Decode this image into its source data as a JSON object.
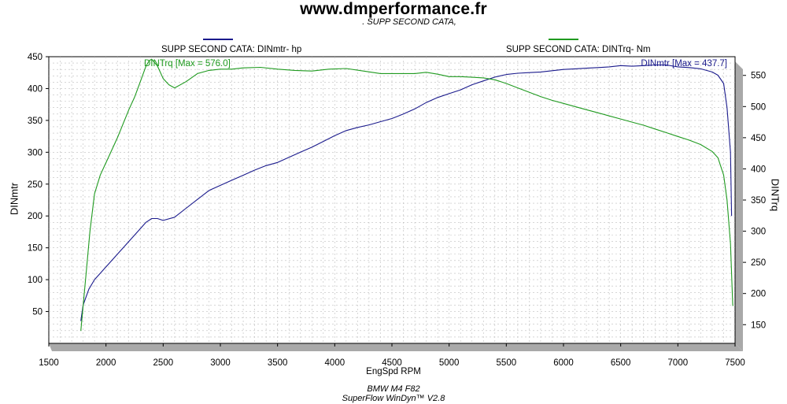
{
  "header": {
    "title": "www.dmperformance.fr",
    "subtitle": ". SUPP SECOND CATA,"
  },
  "legend": {
    "left_label": "SUPP SECOND CATA: DINmtr-  hp",
    "right_label": "SUPP SECOND CATA: DINTrq-  Nm"
  },
  "footer": {
    "line1": "BMW M4 F82",
    "line2": "SuperFlow WinDyn™ V2.8"
  },
  "chart_data": {
    "type": "line",
    "xlabel": "EngSpd  RPM",
    "ylabel": "DINmtr",
    "y2label": "DINTrq",
    "xlim": [
      1500,
      7500
    ],
    "ylim": [
      0,
      450
    ],
    "y2lim": [
      120,
      580
    ],
    "x_ticks": [
      1500,
      2000,
      2500,
      3000,
      3500,
      4000,
      4500,
      5000,
      5500,
      6000,
      6500,
      7000,
      7500
    ],
    "y_ticks": [
      50,
      100,
      150,
      200,
      250,
      300,
      350,
      400,
      450
    ],
    "y2_ticks": [
      150,
      200,
      250,
      300,
      350,
      400,
      450,
      500,
      550
    ],
    "grid": true,
    "annotations": {
      "torque_max": "DINTrq [Max = 576.0]",
      "power_max": "DINmtr [Max = 437.7]"
    },
    "series": [
      {
        "name": "SUPP SECOND CATA: DINmtr-  hp",
        "axis": "left",
        "color": "#1a1a8c",
        "x": [
          1780,
          1800,
          1850,
          1900,
          1950,
          2000,
          2100,
          2200,
          2300,
          2350,
          2400,
          2450,
          2500,
          2600,
          2700,
          2800,
          2900,
          3000,
          3100,
          3200,
          3300,
          3400,
          3500,
          3600,
          3700,
          3800,
          3900,
          4000,
          4100,
          4200,
          4300,
          4400,
          4500,
          4600,
          4700,
          4800,
          4900,
          5000,
          5100,
          5200,
          5300,
          5400,
          5500,
          5600,
          5700,
          5800,
          5900,
          6000,
          6100,
          6200,
          6300,
          6400,
          6500,
          6600,
          6700,
          6800,
          6900,
          7000,
          7100,
          7200,
          7300,
          7350,
          7400,
          7430,
          7460,
          7470
        ],
        "values": [
          35,
          60,
          85,
          100,
          110,
          120,
          140,
          160,
          180,
          190,
          196,
          196,
          193,
          198,
          212,
          226,
          240,
          248,
          256,
          264,
          272,
          279,
          284,
          292,
          300,
          308,
          317,
          326,
          334,
          339,
          343,
          348,
          353,
          360,
          368,
          378,
          386,
          392,
          398,
          406,
          412,
          418,
          422,
          424,
          425,
          426,
          428,
          430,
          431,
          432,
          433,
          434,
          436,
          435,
          436,
          437,
          437,
          434,
          433,
          431,
          426,
          421,
          408,
          370,
          300,
          200
        ]
      },
      {
        "name": "SUPP SECOND CATA: DINTrq-  Nm",
        "axis": "right",
        "color": "#1f9a1f",
        "x": [
          1780,
          1800,
          1830,
          1860,
          1900,
          1950,
          2000,
          2100,
          2200,
          2250,
          2300,
          2350,
          2380,
          2400,
          2450,
          2500,
          2550,
          2600,
          2700,
          2800,
          2900,
          3000,
          3100,
          3200,
          3350,
          3500,
          3650,
          3800,
          3950,
          4100,
          4250,
          4400,
          4550,
          4700,
          4800,
          4900,
          5000,
          5100,
          5200,
          5300,
          5400,
          5500,
          5600,
          5700,
          5800,
          5900,
          6000,
          6100,
          6200,
          6300,
          6400,
          6500,
          6600,
          6700,
          6800,
          6900,
          7000,
          7100,
          7200,
          7300,
          7350,
          7400,
          7430,
          7460,
          7480
        ],
        "values": [
          140,
          180,
          240,
          300,
          360,
          390,
          410,
          450,
          495,
          515,
          540,
          565,
          574,
          576,
          565,
          545,
          535,
          530,
          540,
          553,
          558,
          560,
          560,
          562,
          563,
          560,
          558,
          557,
          560,
          561,
          557,
          553,
          553,
          553,
          555,
          552,
          548,
          548,
          547,
          546,
          543,
          537,
          530,
          523,
          516,
          510,
          505,
          500,
          495,
          490,
          485,
          480,
          475,
          470,
          464,
          458,
          452,
          446,
          439,
          428,
          418,
          390,
          350,
          280,
          180
        ]
      }
    ]
  }
}
